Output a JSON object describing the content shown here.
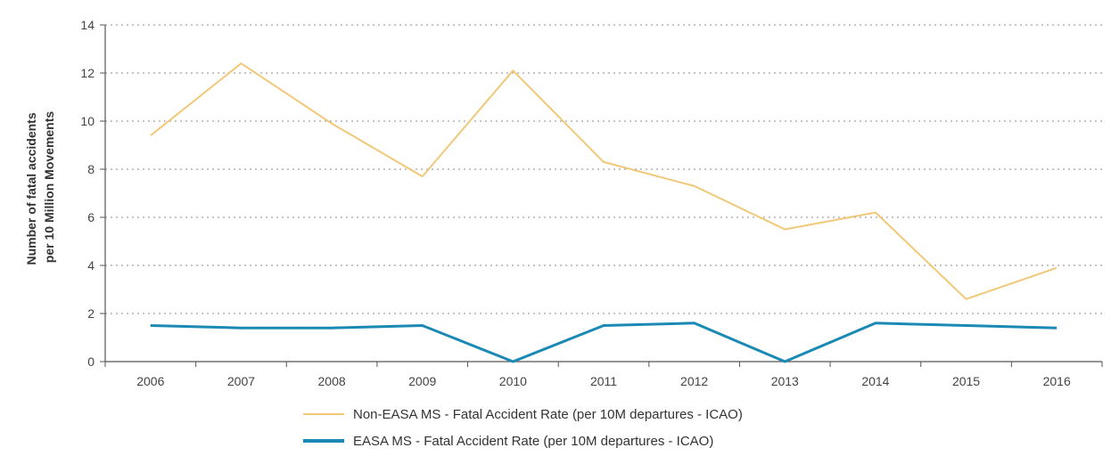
{
  "chart_data": {
    "type": "line",
    "title": "",
    "xlabel": "",
    "ylabel": [
      "Number of fatal accidents",
      "per 10 Million Movements"
    ],
    "x": [
      "2006",
      "2007",
      "2008",
      "2009",
      "2010",
      "2011",
      "2012",
      "2013",
      "2014",
      "2015",
      "2016"
    ],
    "ylim": [
      0,
      14
    ],
    "yticks": [
      "0",
      "2",
      "4",
      "6",
      "8",
      "10",
      "12",
      "14"
    ],
    "grid": true,
    "legend_position": "bottom",
    "series": [
      {
        "name": "Non-EASA MS - Fatal Accident Rate (per 10M departures - ICAO)",
        "color": "#f0c878",
        "values": [
          9.4,
          12.4,
          9.9,
          7.7,
          12.1,
          8.3,
          7.3,
          5.5,
          6.2,
          2.6,
          3.9
        ]
      },
      {
        "name": "EASA MS - Fatal Accident Rate (per 10M departures - ICAO)",
        "color": "#1a8ab5",
        "values": [
          1.5,
          1.4,
          1.4,
          1.5,
          0.0,
          1.5,
          1.6,
          0.0,
          1.6,
          1.5,
          1.4
        ]
      }
    ]
  }
}
